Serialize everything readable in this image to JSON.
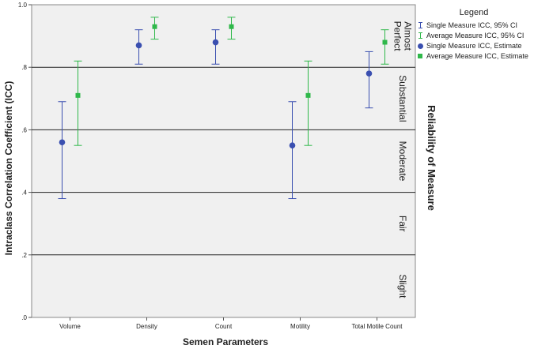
{
  "chart_data": {
    "type": "scatter",
    "title": "",
    "xlabel": "Semen Parameters",
    "ylabel": "Intraclass Correlation Coefficient (ICC)",
    "y2label": "Reliability of Measure",
    "categories": [
      "Volume",
      "Density",
      "Count",
      "Motility",
      "Total Motile Count"
    ],
    "ylim": [
      0,
      1.0
    ],
    "yticks": [
      0,
      0.2,
      0.4,
      0.6,
      0.8,
      1.0
    ],
    "ytick_labels": [
      ".0",
      ".2",
      ".4",
      ".6",
      ".8",
      "1.0"
    ],
    "grid": "horizontal reference lines at .2, .4, .6, .8",
    "series": [
      {
        "name": "Single Measure ICC, Estimate",
        "ci_name": "Single Measure ICC, 95% CI",
        "color": "#3a4fb0",
        "marker": "circle",
        "values": [
          0.56,
          0.87,
          0.88,
          0.55,
          0.78
        ],
        "ci_low": [
          0.38,
          0.81,
          0.81,
          0.38,
          0.67
        ],
        "ci_high": [
          0.69,
          0.92,
          0.92,
          0.69,
          0.85
        ]
      },
      {
        "name": "Average Measure ICC, Estimate",
        "ci_name": "Average Measure ICC, 95% CI",
        "color": "#2fb84a",
        "marker": "square",
        "values": [
          0.71,
          0.93,
          0.93,
          0.71,
          0.88
        ],
        "ci_low": [
          0.55,
          0.89,
          0.89,
          0.55,
          0.81
        ],
        "ci_high": [
          0.82,
          0.96,
          0.96,
          0.82,
          0.92
        ]
      }
    ],
    "zones": [
      {
        "label_lines": [
          "Almost",
          "Perfect"
        ],
        "from": 0.8,
        "to": 1.0
      },
      {
        "label_lines": [
          "Substantial"
        ],
        "from": 0.6,
        "to": 0.8
      },
      {
        "label_lines": [
          "Moderate"
        ],
        "from": 0.4,
        "to": 0.6
      },
      {
        "label_lines": [
          "Fair"
        ],
        "from": 0.2,
        "to": 0.4
      },
      {
        "label_lines": [
          "Slight"
        ],
        "from": 0.0,
        "to": 0.2
      }
    ],
    "legend": {
      "title": "Legend",
      "position": "top-right",
      "entries": [
        {
          "label": "Single Measure ICC, 95% CI",
          "color": "#3a4fb0",
          "symbol": "errorbar"
        },
        {
          "label": "Average Measure ICC, 95% CI",
          "color": "#2fb84a",
          "symbol": "errorbar"
        },
        {
          "label": "Single Measure ICC, Estimate",
          "color": "#3a4fb0",
          "symbol": "circle"
        },
        {
          "label": "Average Measure ICC, Estimate",
          "color": "#2fb84a",
          "symbol": "square"
        }
      ]
    },
    "plot_background": "#f0f0f0"
  }
}
